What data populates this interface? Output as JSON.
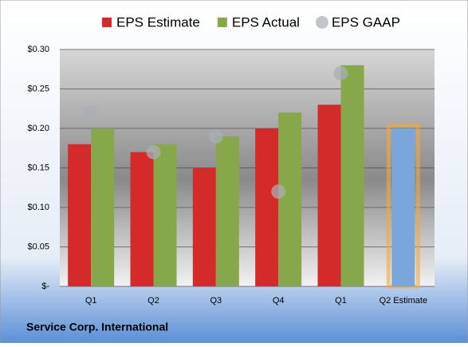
{
  "chart_data": {
    "type": "bar",
    "categories": [
      "Q1",
      "Q2",
      "Q3",
      "Q4",
      "Q1",
      "Q2 Estimate"
    ],
    "series": [
      {
        "name": "EPS Estimate",
        "color": "#d42a2a",
        "values": [
          0.18,
          0.17,
          0.15,
          0.2,
          0.23,
          0.2
        ],
        "colors": [
          "#d42a2a",
          "#d42a2a",
          "#d42a2a",
          "#d42a2a",
          "#d42a2a",
          "#7aa6dc"
        ]
      },
      {
        "name": "EPS Actual",
        "color": "#86a84a",
        "values": [
          0.2,
          0.18,
          0.19,
          0.22,
          0.28,
          null
        ]
      },
      {
        "name": "EPS GAAP",
        "color": "#a9adb3",
        "marker": "circle",
        "values": [
          0.22,
          0.17,
          0.19,
          0.12,
          0.27,
          null
        ]
      }
    ],
    "ylim": [
      0,
      0.3
    ],
    "yticks": [
      {
        "value": 0,
        "label": "$-"
      },
      {
        "value": 0.05,
        "label": "$0.05"
      },
      {
        "value": 0.1,
        "label": "$0.10"
      },
      {
        "value": 0.15,
        "label": "$0.15"
      },
      {
        "value": 0.2,
        "label": "$0.20"
      },
      {
        "value": 0.25,
        "label": "$0.25"
      },
      {
        "value": 0.3,
        "label": "$0.30"
      }
    ],
    "grid": true,
    "legend": "top",
    "footer": "Service Corp. International"
  }
}
